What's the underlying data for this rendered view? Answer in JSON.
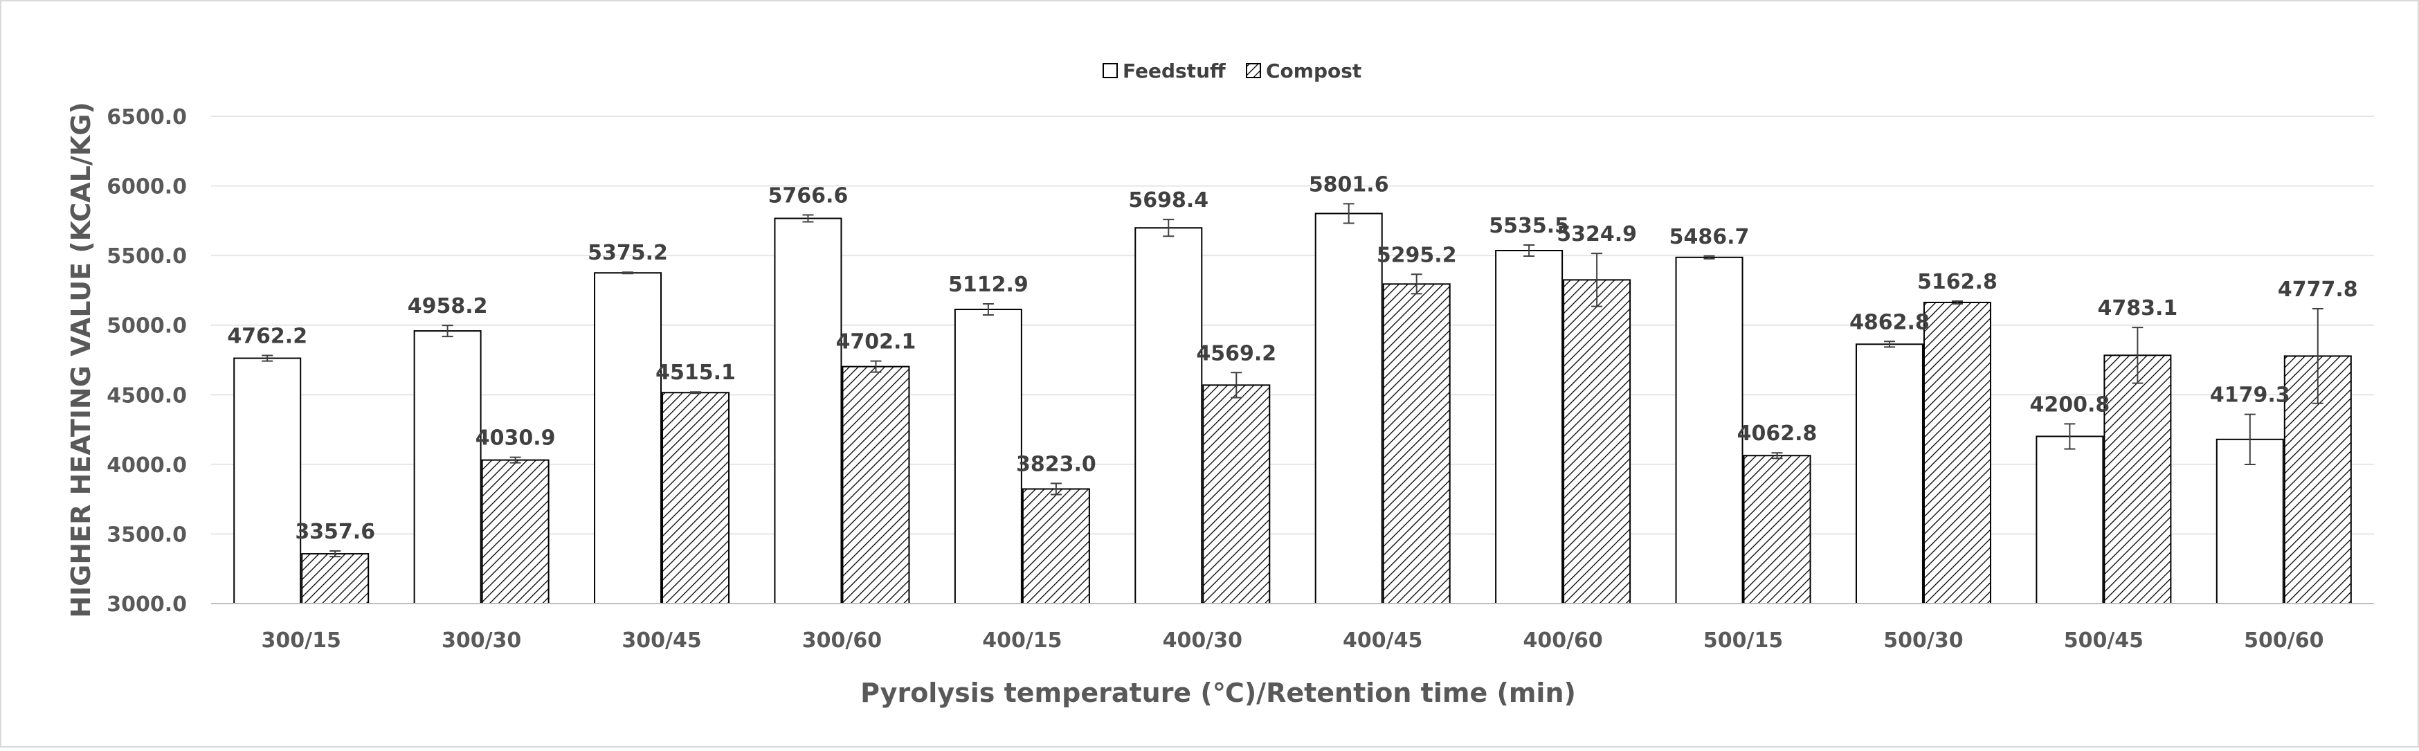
{
  "chart_data": {
    "type": "bar",
    "title": "",
    "xlabel": "Pyrolysis temperature (℃)/Retention time (min)",
    "ylabel": "HIGHER HEATING VALUE (KCAL/KG)",
    "ylim": [
      3000,
      6500
    ],
    "yticks": [
      3000,
      3500,
      4000,
      4500,
      5000,
      5500,
      6000,
      6500
    ],
    "ytick_labels": [
      "3000.0",
      "3500.0",
      "4000.0",
      "4500.0",
      "5000.0",
      "5500.0",
      "6000.0",
      "6500.0"
    ],
    "grid": true,
    "legend_position": "top-center",
    "categories": [
      "300/15",
      "300/30",
      "300/45",
      "300/60",
      "400/15",
      "400/30",
      "400/45",
      "400/60",
      "500/15",
      "500/30",
      "500/45",
      "500/60"
    ],
    "series": [
      {
        "name": "Feedstuff",
        "fill": "white",
        "values": [
          4762.2,
          4958.2,
          5375.2,
          5766.6,
          5112.9,
          5698.4,
          5801.6,
          5535.5,
          5486.7,
          4862.8,
          4200.8,
          4179.3
        ],
        "labels": [
          "4762.2",
          "4958.2",
          "5375.2",
          "5766.6",
          "5112.9",
          "5698.4",
          "5801.6",
          "5535.5",
          "5486.7",
          "4862.8",
          "4200.8",
          "4179.3"
        ],
        "errors": [
          20,
          40,
          5,
          25,
          40,
          60,
          70,
          40,
          10,
          20,
          90,
          180
        ]
      },
      {
        "name": "Compost",
        "fill": "hatched",
        "values": [
          3357.6,
          4030.9,
          4515.1,
          4702.1,
          3823.0,
          4569.2,
          5295.2,
          5324.9,
          4062.8,
          5162.8,
          4783.1,
          4777.8
        ],
        "labels": [
          "3357.6",
          "4030.9",
          "4515.1",
          "4702.1",
          "3823.0",
          "4569.2",
          "5295.2",
          "5324.9",
          "4062.8",
          "5162.8",
          "4783.1",
          "4777.8"
        ],
        "errors": [
          20,
          20,
          5,
          40,
          40,
          90,
          70,
          190,
          20,
          10,
          200,
          340
        ]
      }
    ],
    "colors": {
      "axis": "#bfbfbf",
      "grid": "#e6e6e6",
      "bar_edge": "#000000",
      "hatch": "#000000",
      "text": "#404040",
      "frame": "#d9d9d9"
    }
  }
}
